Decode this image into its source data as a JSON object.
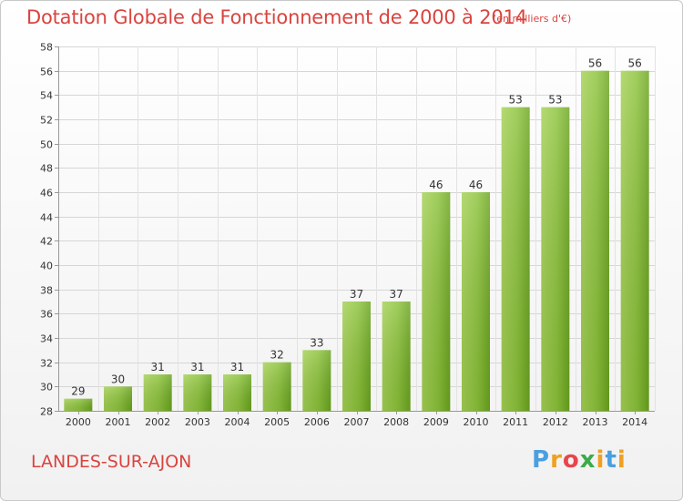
{
  "title": "Dotation Globale de Fonctionnement de 2000 à 2014",
  "subtitle": "(en milliers d'€)",
  "commune": "LANDES-SUR-AJON",
  "logo_text": "Proxiti",
  "chart_data": {
    "type": "bar",
    "title": "Dotation Globale de Fonctionnement de 2000 à 2014",
    "subtitle": "(en milliers d'€)",
    "xlabel": "",
    "ylabel": "",
    "categories": [
      "2000",
      "2001",
      "2002",
      "2003",
      "2004",
      "2005",
      "2006",
      "2007",
      "2008",
      "2009",
      "2010",
      "2011",
      "2012",
      "2013",
      "2014"
    ],
    "values": [
      29,
      30,
      31,
      31,
      31,
      32,
      33,
      37,
      37,
      46,
      46,
      53,
      53,
      56,
      56
    ],
    "data_labels": [
      "29",
      "30",
      "31",
      "31",
      "31",
      "32",
      "33",
      "37",
      "37",
      "46",
      "46",
      "53",
      "53",
      "56",
      "56"
    ],
    "ylim": [
      28,
      58
    ],
    "yticks": [
      28,
      30,
      32,
      34,
      36,
      38,
      40,
      42,
      44,
      46,
      48,
      50,
      52,
      54,
      56,
      58
    ],
    "grid": true,
    "legend": "none",
    "bar_color": "#7cb52a",
    "bar_color_light": "#a4d154",
    "title_color": "#d9443f"
  }
}
